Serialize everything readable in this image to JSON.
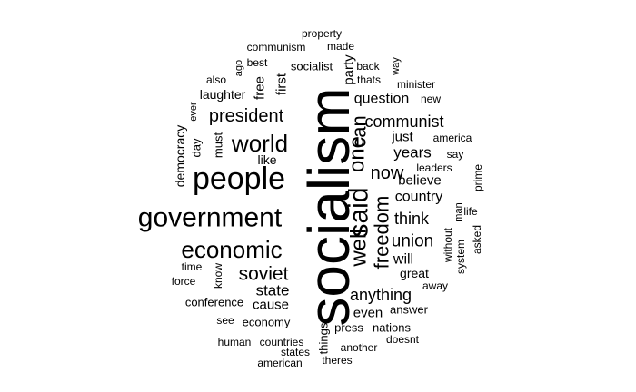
{
  "cloud": {
    "text_color": "#000000",
    "background": "#ffffff",
    "words": [
      {
        "text": "socialism",
        "rot": true
      },
      {
        "text": "people",
        "rot": false
      },
      {
        "text": "government",
        "rot": false
      },
      {
        "text": "world",
        "rot": false
      },
      {
        "text": "economic",
        "rot": false
      },
      {
        "text": "said",
        "rot": true
      },
      {
        "text": "well",
        "rot": true
      },
      {
        "text": "one",
        "rot": true
      },
      {
        "text": "can",
        "rot": true
      },
      {
        "text": "freedom",
        "rot": true
      },
      {
        "text": "soviet",
        "rot": false
      },
      {
        "text": "president",
        "rot": false
      },
      {
        "text": "now",
        "rot": false
      },
      {
        "text": "communist",
        "rot": false
      },
      {
        "text": "anything",
        "rot": false
      },
      {
        "text": "union",
        "rot": false
      },
      {
        "text": "think",
        "rot": false
      },
      {
        "text": "state",
        "rot": false
      },
      {
        "text": "years",
        "rot": false
      },
      {
        "text": "country",
        "rot": false
      },
      {
        "text": "question",
        "rot": false
      },
      {
        "text": "cause",
        "rot": false
      },
      {
        "text": "will",
        "rot": false
      },
      {
        "text": "just",
        "rot": false
      },
      {
        "text": "believe",
        "rot": false
      },
      {
        "text": "even",
        "rot": false
      },
      {
        "text": "first",
        "rot": true
      },
      {
        "text": "free",
        "rot": true
      },
      {
        "text": "party",
        "rot": true
      },
      {
        "text": "great",
        "rot": false
      },
      {
        "text": "like",
        "rot": false
      },
      {
        "text": "democracy",
        "rot": true
      },
      {
        "text": "laughter",
        "rot": false
      },
      {
        "text": "conference",
        "rot": false
      },
      {
        "text": "economy",
        "rot": false
      },
      {
        "text": "socialist",
        "rot": false
      },
      {
        "text": "answer",
        "rot": false
      },
      {
        "text": "nations",
        "rot": false
      },
      {
        "text": "press",
        "rot": false
      },
      {
        "text": "things",
        "rot": true
      },
      {
        "text": "day",
        "rot": true
      },
      {
        "text": "must",
        "rot": true
      },
      {
        "text": "know",
        "rot": true
      },
      {
        "text": "without",
        "rot": true
      },
      {
        "text": "system",
        "rot": true
      },
      {
        "text": "america",
        "rot": false
      },
      {
        "text": "leaders",
        "rot": false
      },
      {
        "text": "say",
        "rot": false
      },
      {
        "text": "new",
        "rot": false
      },
      {
        "text": "minister",
        "rot": false
      },
      {
        "text": "thats",
        "rot": false
      },
      {
        "text": "back",
        "rot": false
      },
      {
        "text": "best",
        "rot": false
      },
      {
        "text": "communism",
        "rot": false
      },
      {
        "text": "made",
        "rot": false
      },
      {
        "text": "property",
        "rot": false
      },
      {
        "text": "also",
        "rot": false
      },
      {
        "text": "ago",
        "rot": true
      },
      {
        "text": "way",
        "rot": true
      },
      {
        "text": "ever",
        "rot": true
      },
      {
        "text": "prime",
        "rot": true
      },
      {
        "text": "man",
        "rot": true
      },
      {
        "text": "life",
        "rot": false
      },
      {
        "text": "asked",
        "rot": true
      },
      {
        "text": "away",
        "rot": false
      },
      {
        "text": "time",
        "rot": false
      },
      {
        "text": "force",
        "rot": false
      },
      {
        "text": "see",
        "rot": false
      },
      {
        "text": "human",
        "rot": false
      },
      {
        "text": "countries",
        "rot": false
      },
      {
        "text": "states",
        "rot": false
      },
      {
        "text": "american",
        "rot": false
      },
      {
        "text": "another",
        "rot": false
      },
      {
        "text": "doesnt",
        "rot": false
      },
      {
        "text": "theres",
        "rot": false
      }
    ]
  }
}
